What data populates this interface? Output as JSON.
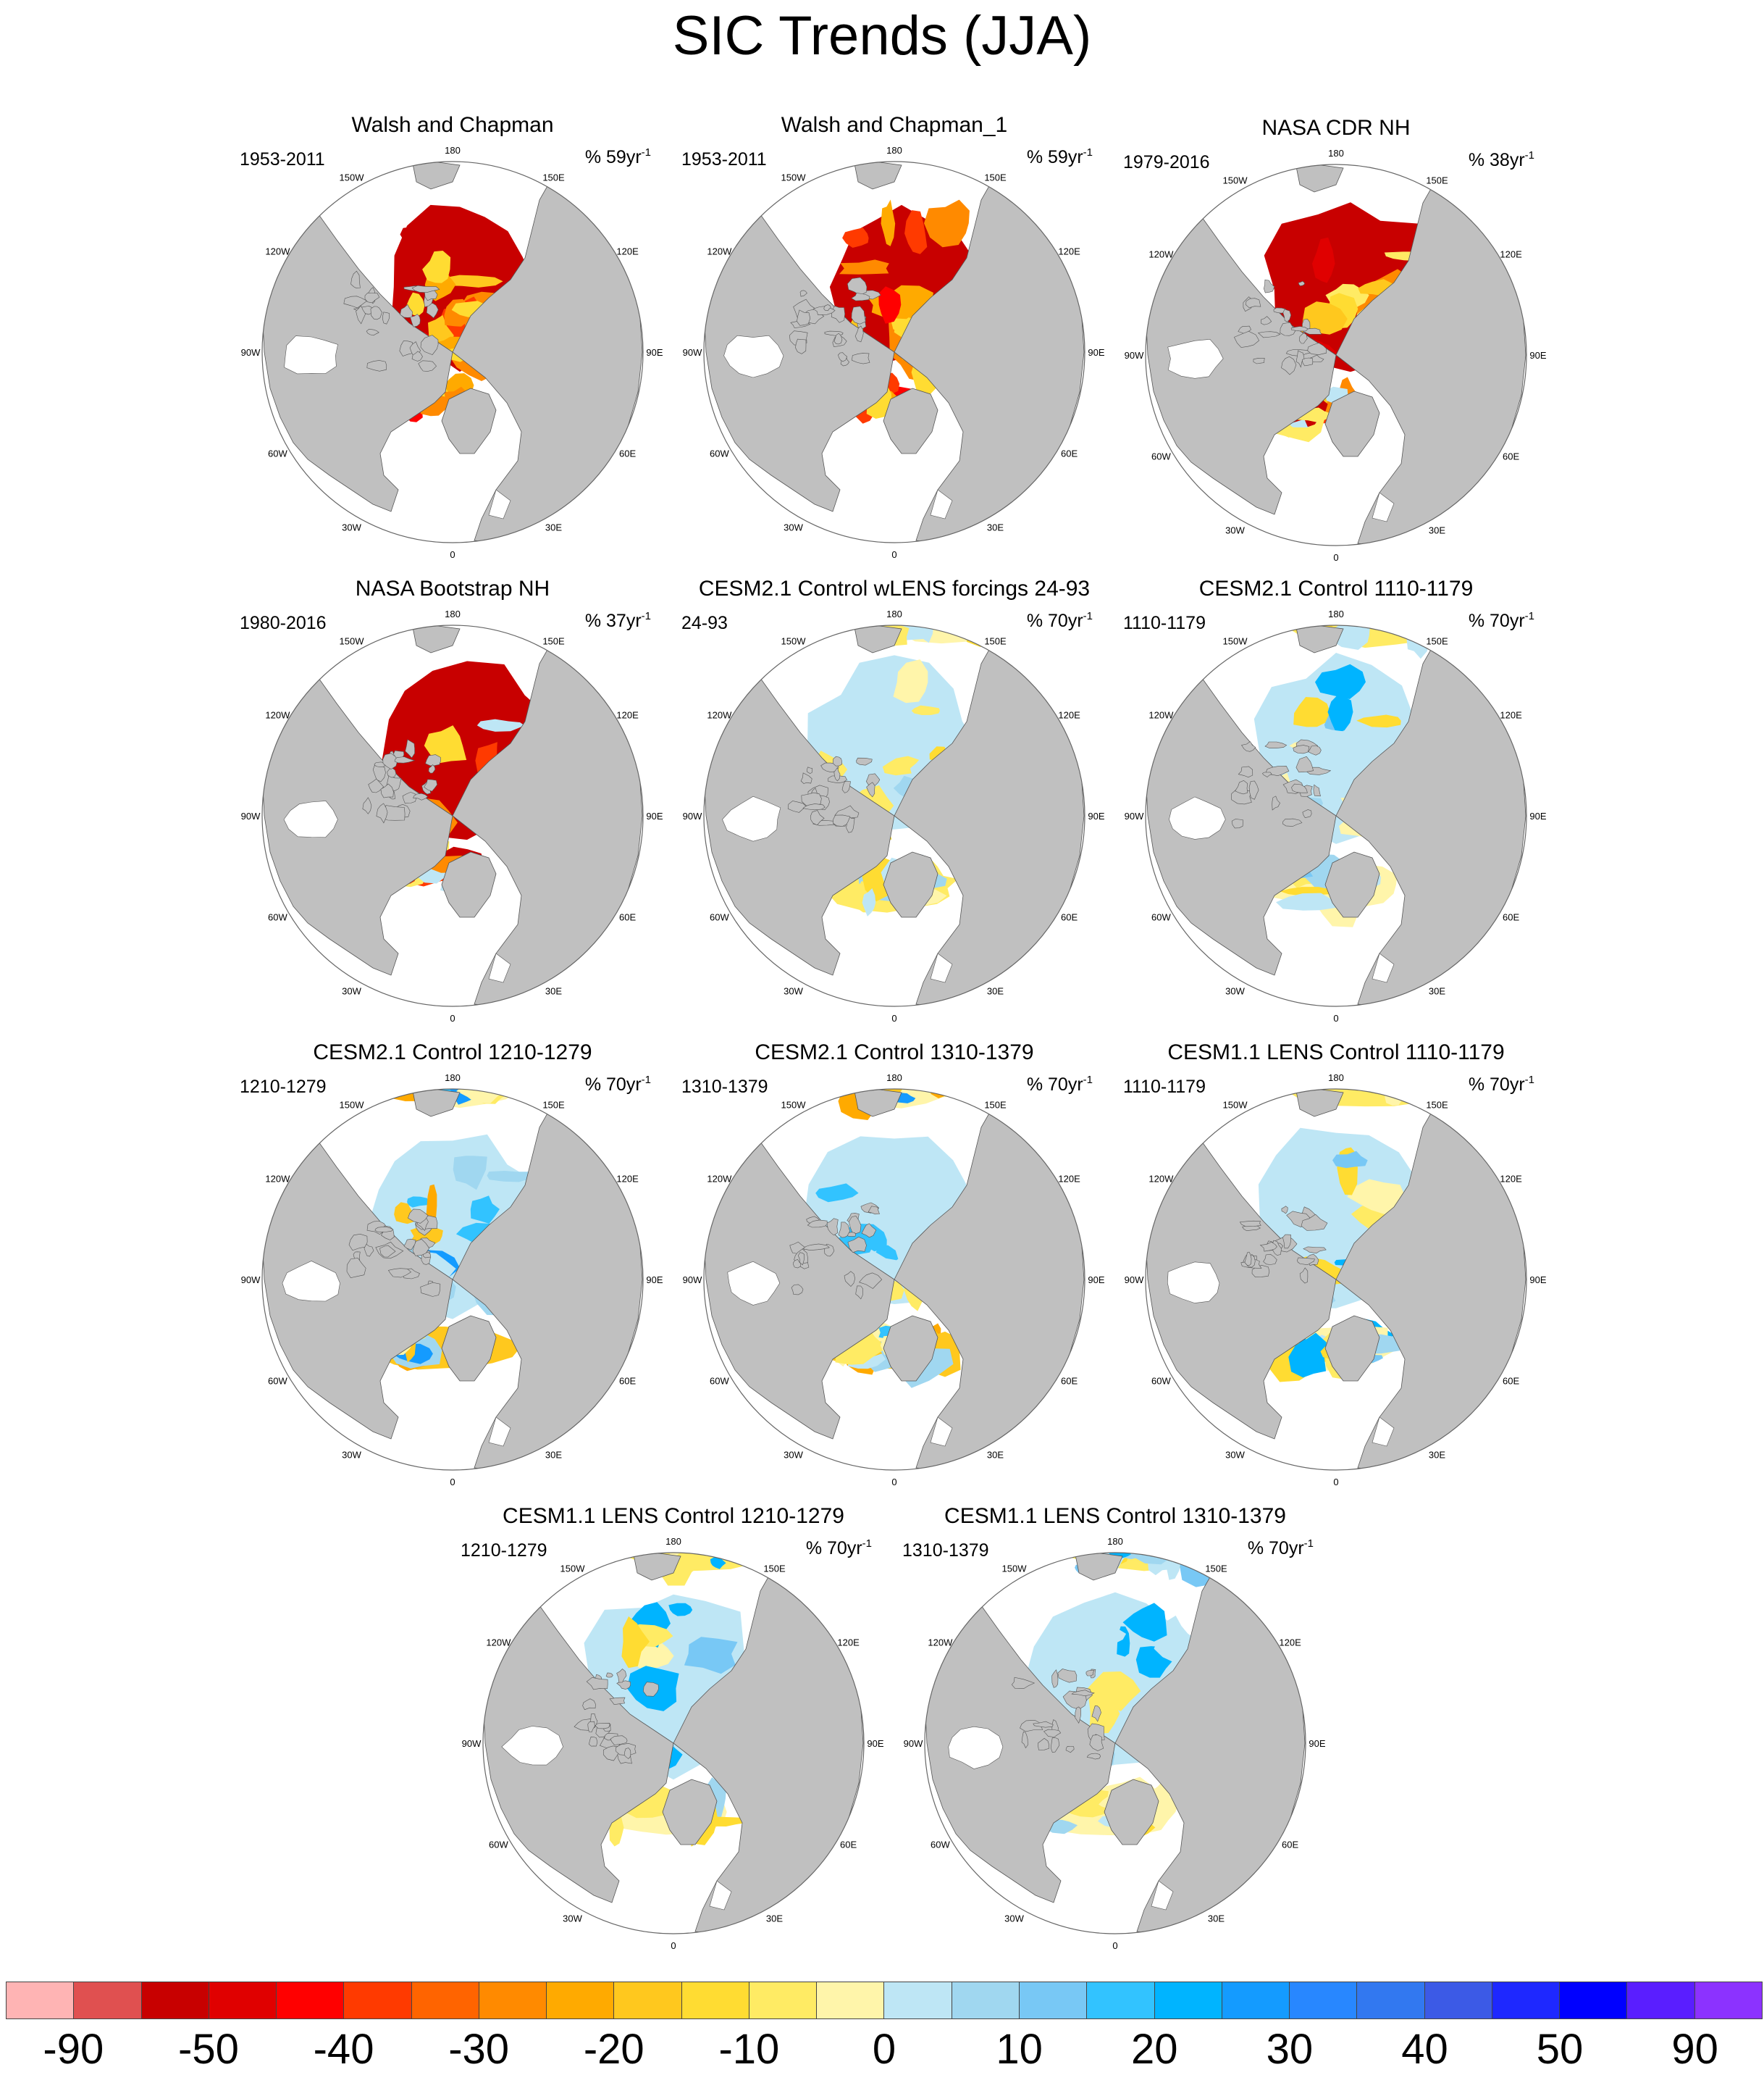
{
  "title": "SIC Trends (JJA)",
  "lon_labels": [
    "180",
    "150E",
    "120E",
    "90E",
    "60E",
    "30E",
    "0",
    "30W",
    "60W",
    "90W",
    "120W",
    "150W"
  ],
  "panels": [
    {
      "title": "Walsh and Chapman",
      "period": "1953-2011",
      "unit_main": "% 59yr",
      "unit_exp": "-1",
      "anomaly": "decline_strong"
    },
    {
      "title": "Walsh and Chapman_1",
      "period": "1953-2011",
      "unit_main": "% 59yr",
      "unit_exp": "-1",
      "anomaly": "decline_strong"
    },
    {
      "title": "NASA CDR NH",
      "period": "1979-2016",
      "unit_main": "% 38yr",
      "unit_exp": "-1",
      "anomaly": "decline_wide"
    },
    {
      "title": "NASA Bootstrap NH",
      "period": "1980-2016",
      "unit_main": "% 37yr",
      "unit_exp": "-1",
      "anomaly": "decline_wide"
    },
    {
      "title": "CESM2.1 Control wLENS forcings 24-93",
      "period": "24-93",
      "unit_main": "% 70yr",
      "unit_exp": "-1",
      "anomaly": "mixed_yellow"
    },
    {
      "title": "CESM2.1 Control 1110-1179",
      "period": "1110-1179",
      "unit_main": "% 70yr",
      "unit_exp": "-1",
      "anomaly": "mixed_blue"
    },
    {
      "title": "CESM2.1 Control 1210-1279",
      "period": "1210-1279",
      "unit_main": "% 70yr",
      "unit_exp": "-1",
      "anomaly": "mixed_orange"
    },
    {
      "title": "CESM2.1 Control 1310-1379",
      "period": "1310-1379",
      "unit_main": "% 70yr",
      "unit_exp": "-1",
      "anomaly": "mixed_orange"
    },
    {
      "title": "CESM1.1 LENS Control 1110-1179",
      "period": "1110-1179",
      "unit_main": "% 70yr",
      "unit_exp": "-1",
      "anomaly": "mixed_blue"
    },
    {
      "title": "CESM1.1 LENS Control 1210-1279",
      "period": "1210-1279",
      "unit_main": "% 70yr",
      "unit_exp": "-1",
      "anomaly": "mixed_blue"
    },
    {
      "title": "CESM1.1 LENS Control 1310-1379",
      "period": "1310-1379",
      "unit_main": "% 70yr",
      "unit_exp": "-1",
      "anomaly": "mixed_blue"
    }
  ],
  "colorbar": {
    "colors": [
      "#ffb4b4",
      "#e05050",
      "#c80000",
      "#e00000",
      "#ff0000",
      "#ff3a00",
      "#ff6400",
      "#ff8a00",
      "#ffaa00",
      "#ffc81e",
      "#ffdc32",
      "#ffeb64",
      "#fff5aa",
      "#bee6f5",
      "#a0d7f0",
      "#78c8f5",
      "#32c3ff",
      "#00b4ff",
      "#149bff",
      "#2887ff",
      "#3278f0",
      "#3c5ae6",
      "#1e28ff",
      "#0000ff",
      "#5a1eff",
      "#8c32ff"
    ],
    "labels": [
      "-90",
      "-50",
      "-40",
      "-30",
      "-20",
      "-10",
      "0",
      "10",
      "20",
      "30",
      "40",
      "50",
      "90"
    ]
  },
  "colors": {
    "land": "#c0c0c0",
    "ocean": "#ffffff",
    "coast": "#555555"
  }
}
